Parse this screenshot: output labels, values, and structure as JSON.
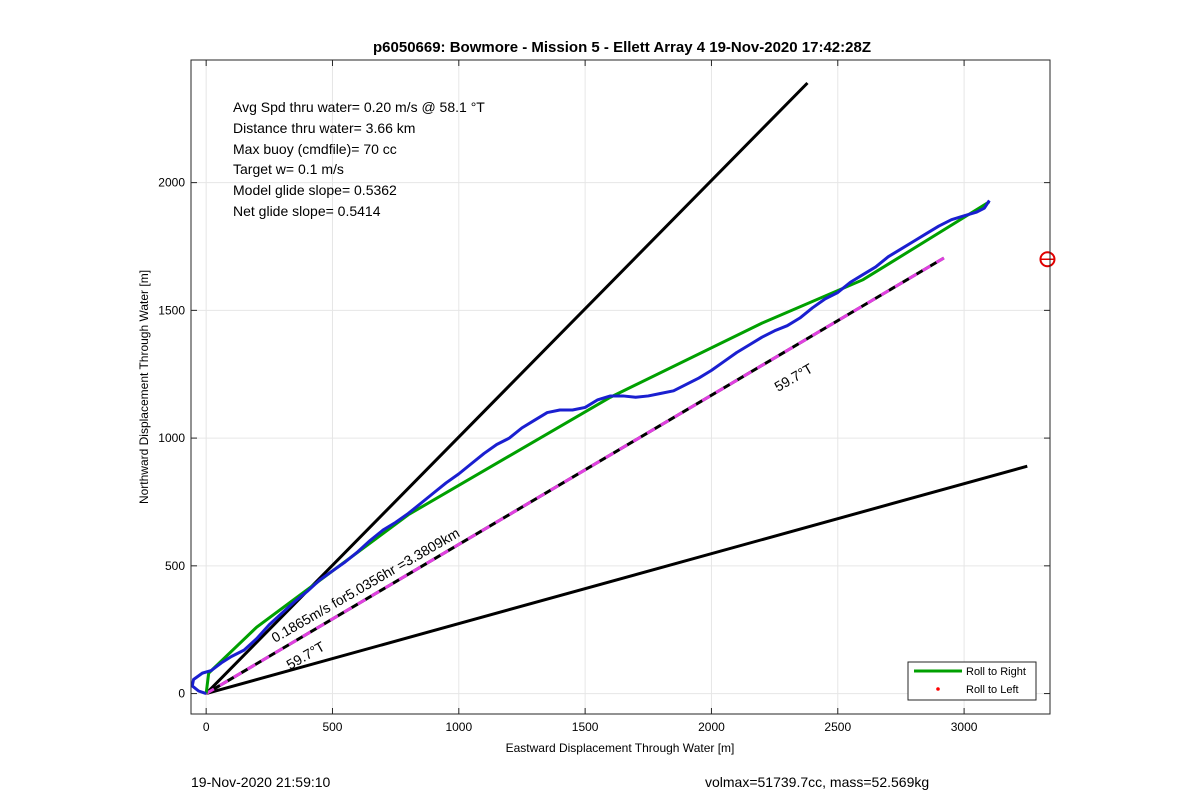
{
  "chart_data": {
    "type": "line",
    "title": "p6050669: Bowmore - Mission 5 - Ellett Array 4 19-Nov-2020 17:42:28Z",
    "xlabel": "Eastward Displacement Through Water [m]",
    "ylabel": "Northward Displacement Through Water [m]",
    "xlim": [
      -60,
      3340
    ],
    "ylim": [
      -80,
      2480
    ],
    "xticks": [
      0,
      500,
      1000,
      1500,
      2000,
      2500,
      3000
    ],
    "yticks": [
      0,
      500,
      1000,
      1500,
      2000
    ],
    "grid": true,
    "stats_text": [
      "Avg Spd thru water=  0.20 m/s @  58.1 °T",
      "Distance thru water=  3.66 km",
      "Max buoy (cmdfile)= 70 cc",
      "Target w= 0.1 m/s",
      "Model glide slope= 0.5362",
      "Net glide slope= 0.5414"
    ],
    "annotations": {
      "heading_upper": "59.7°T",
      "heading_lower": "59.7°T",
      "track_summary": "0.1865m/s for5.0356hr =3.3809km"
    },
    "series": [
      {
        "name": "Roll to Right",
        "style": "line",
        "color": "#00a000",
        "x": [
          0,
          10,
          200,
          800,
          1600,
          2200,
          2600,
          3100
        ],
        "y": [
          0,
          80,
          260,
          700,
          1160,
          1450,
          1620,
          1925
        ]
      },
      {
        "name": "Roll to Left",
        "style": "point",
        "color": "#ff0000",
        "x": [],
        "y": []
      }
    ],
    "track": {
      "color": "#1a1fd0",
      "x": [
        0,
        -30,
        -55,
        -50,
        -15,
        20,
        60,
        100,
        150,
        200,
        250,
        300,
        350,
        400,
        450,
        500,
        550,
        600,
        650,
        700,
        750,
        800,
        850,
        900,
        950,
        1000,
        1050,
        1100,
        1150,
        1200,
        1250,
        1300,
        1350,
        1400,
        1450,
        1500,
        1550,
        1600,
        1650,
        1700,
        1750,
        1800,
        1850,
        1900,
        1950,
        2000,
        2050,
        2100,
        2150,
        2200,
        2250,
        2300,
        2350,
        2400,
        2450,
        2500,
        2550,
        2600,
        2650,
        2700,
        2750,
        2800,
        2850,
        2900,
        2950,
        3000,
        3050,
        3080,
        3100
      ],
      "y": [
        0,
        10,
        30,
        55,
        80,
        90,
        120,
        145,
        170,
        215,
        270,
        315,
        360,
        400,
        445,
        480,
        515,
        555,
        600,
        640,
        670,
        705,
        745,
        785,
        825,
        860,
        900,
        940,
        975,
        1000,
        1040,
        1070,
        1100,
        1110,
        1110,
        1120,
        1150,
        1165,
        1165,
        1160,
        1165,
        1175,
        1185,
        1210,
        1235,
        1265,
        1300,
        1335,
        1365,
        1395,
        1420,
        1440,
        1470,
        1510,
        1545,
        1570,
        1610,
        1640,
        1670,
        1710,
        1740,
        1770,
        1800,
        1830,
        1855,
        1870,
        1885,
        1900,
        1930
      ]
    },
    "reference_lines": [
      {
        "role": "upper-bound",
        "color": "#000000",
        "x": [
          0,
          2380
        ],
        "y": [
          0,
          2390
        ]
      },
      {
        "role": "lower-bound",
        "color": "#000000",
        "x": [
          0,
          3250
        ],
        "y": [
          0,
          890
        ]
      },
      {
        "role": "heading-59.7T",
        "color": "#e040e0",
        "dash_color": "#000000",
        "x": [
          0,
          2920
        ],
        "y": [
          0,
          1705
        ]
      }
    ],
    "target_marker": {
      "color": "#e00000",
      "x": 3330,
      "y": 1700
    },
    "legend": {
      "placement": "bottom-right",
      "entries": [
        "Roll to Right",
        "Roll to Left"
      ]
    }
  },
  "footer": {
    "timestamp": "19-Nov-2020 21:59:10",
    "volume_mass": "volmax=51739.7cc, mass=52.569kg"
  },
  "colors": {
    "grid": "#e6e6e6",
    "axes": "#262626"
  }
}
